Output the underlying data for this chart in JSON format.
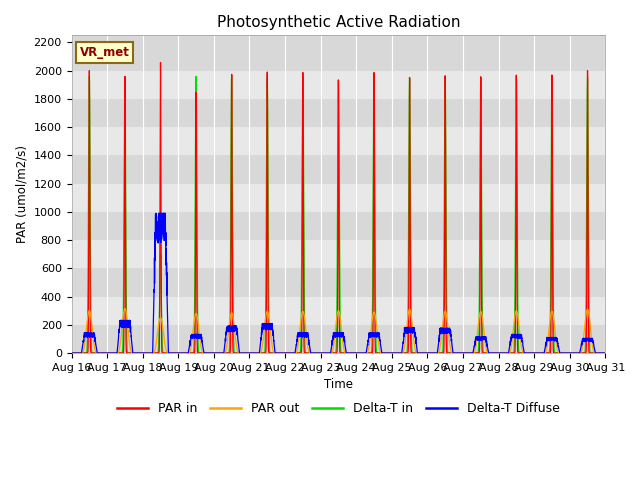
{
  "title": "Photosynthetic Active Radiation",
  "ylabel": "PAR (umol/m2/s)",
  "xlabel": "Time",
  "ylim": [
    0,
    2250
  ],
  "yticks": [
    0,
    200,
    400,
    600,
    800,
    1000,
    1200,
    1400,
    1600,
    1800,
    2000,
    2200
  ],
  "date_labels": [
    "Aug 16",
    "Aug 17",
    "Aug 18",
    "Aug 19",
    "Aug 20",
    "Aug 21",
    "Aug 22",
    "Aug 23",
    "Aug 24",
    "Aug 25",
    "Aug 26",
    "Aug 27",
    "Aug 28",
    "Aug 29",
    "Aug 30",
    "Aug 31"
  ],
  "annotation_text": "VR_met",
  "annotation_color": "#8B0000",
  "annotation_bg": "#FFFFCC",
  "annotation_border": "#8B6914",
  "colors": {
    "PAR_in": "#FF0000",
    "PAR_out": "#FFA500",
    "Delta_T_in": "#00DD00",
    "Delta_T_Diffuse": "#0000FF"
  },
  "legend_labels": [
    "PAR in",
    "PAR out",
    "Delta-T in",
    "Delta-T Diffuse"
  ],
  "bg_bands": [
    "#D8D8D8",
    "#E8E8E8"
  ],
  "grid_color": "#FFFFFF"
}
